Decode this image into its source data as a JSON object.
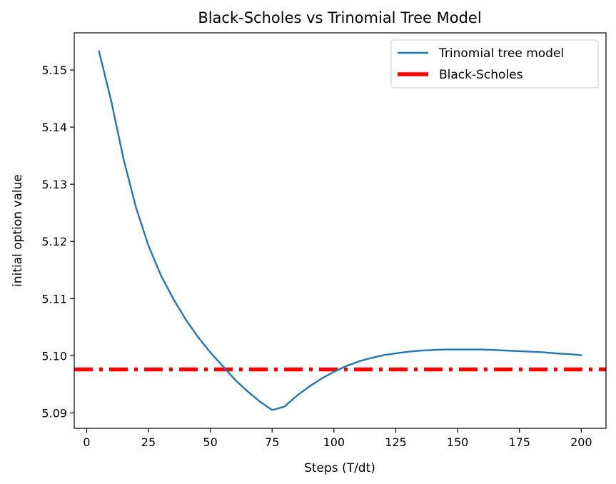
{
  "chart_data": {
    "type": "line",
    "title": "Black-Scholes vs Trinomial Tree Model",
    "xlabel": "Steps (T/dt)",
    "ylabel": "initial option value",
    "xlim": [
      -5,
      210
    ],
    "ylim": [
      5.0873,
      5.1565
    ],
    "xticks": [
      0,
      25,
      50,
      75,
      100,
      125,
      150,
      175,
      200
    ],
    "xtick_labels": [
      "0",
      "25",
      "50",
      "75",
      "100",
      "125",
      "150",
      "175",
      "200"
    ],
    "yticks": [
      5.09,
      5.1,
      5.11,
      5.12,
      5.13,
      5.14,
      5.15
    ],
    "ytick_labels": [
      "5.09",
      "5.10",
      "5.11",
      "5.12",
      "5.13",
      "5.14",
      "5.15"
    ],
    "grid": false,
    "legend_position": "top-right",
    "series": [
      {
        "name": "Trinomial tree model",
        "color": "#1f77b4",
        "style": "solid",
        "x": [
          5,
          10,
          15,
          20,
          25,
          30,
          35,
          40,
          45,
          50,
          55,
          60,
          65,
          70,
          75,
          80,
          85,
          90,
          95,
          100,
          105,
          110,
          115,
          120,
          125,
          130,
          135,
          140,
          145,
          150,
          155,
          160,
          165,
          170,
          175,
          180,
          185,
          190,
          195,
          200
        ],
        "y": [
          5.1533,
          5.1445,
          5.1343,
          5.1259,
          5.1193,
          5.1141,
          5.11,
          5.1064,
          5.1033,
          5.1006,
          5.0982,
          5.0958,
          5.0938,
          5.092,
          5.0905,
          5.0911,
          5.093,
          5.0946,
          5.096,
          5.0972,
          5.0982,
          5.099,
          5.0996,
          5.1001,
          5.1004,
          5.1007,
          5.1009,
          5.101,
          5.1011,
          5.1011,
          5.1011,
          5.1011,
          5.101,
          5.1009,
          5.1008,
          5.1007,
          5.1006,
          5.1004,
          5.1003,
          5.1001
        ]
      },
      {
        "name": "Black-Scholes",
        "color": "#ff0000",
        "style": "dashdot",
        "type": "hline",
        "y": 5.0976
      }
    ]
  }
}
